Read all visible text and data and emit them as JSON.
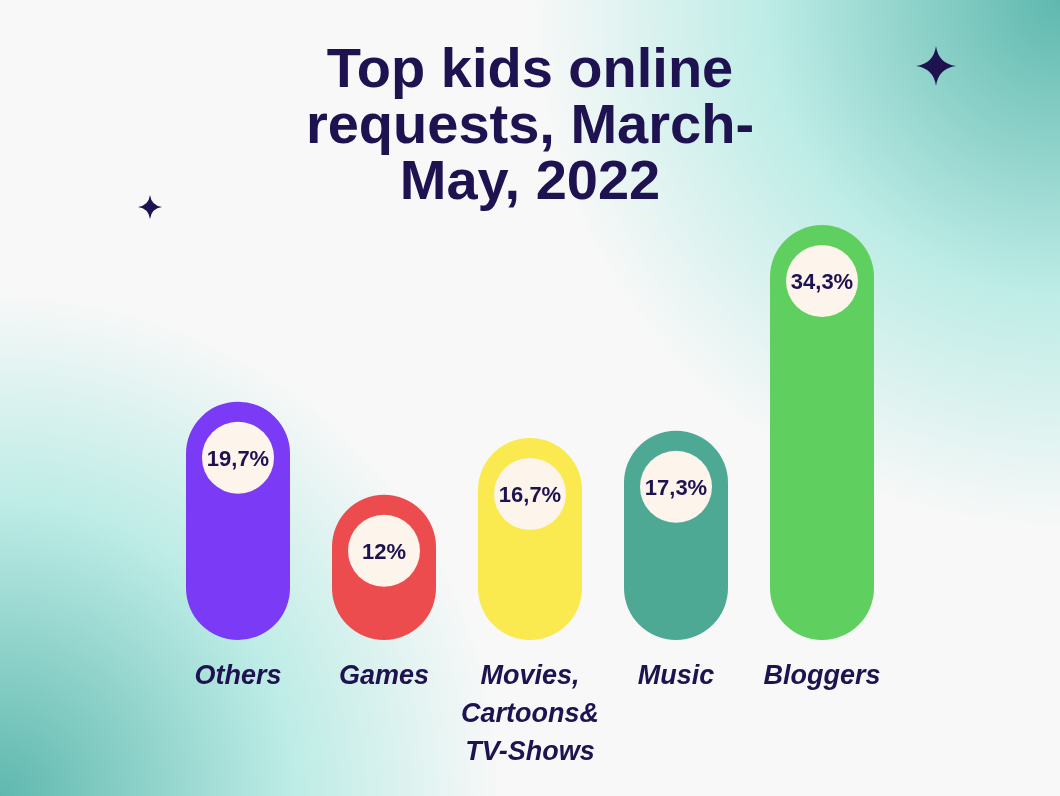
{
  "chart_data": {
    "type": "bar",
    "title": "Top kids online requests, March-May, 2022",
    "categories": [
      "Others",
      "Games",
      "Movies, Cartoons& TV-Shows",
      "Music",
      "Bloggers"
    ],
    "values": [
      19.7,
      12,
      16.7,
      17.3,
      34.3
    ],
    "colors": [
      "#7b3af5",
      "#ec4c4e",
      "#fae94f",
      "#4ea994",
      "#5fcf5f"
    ],
    "value_labels": [
      "19,7%",
      "12%",
      "16,7%",
      "17,3%",
      "34,3%"
    ],
    "grid": false,
    "legend": false
  }
}
